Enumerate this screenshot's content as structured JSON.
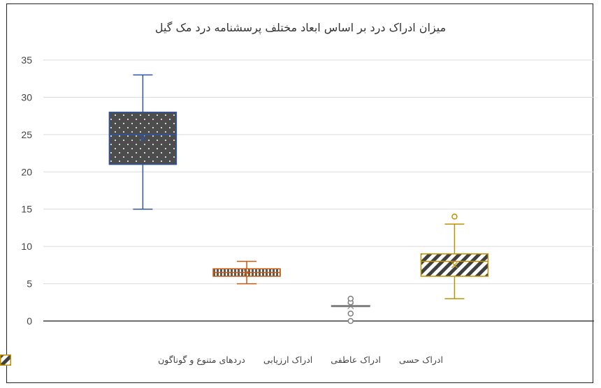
{
  "chart_data": {
    "type": "box",
    "title": "میزان ادراک درد بر اساس ابعاد مختلف پرسشنامه درد مک گیل",
    "xlabel": "",
    "ylabel": "",
    "ylim": [
      0,
      35
    ],
    "yticks": [
      0,
      5,
      10,
      15,
      20,
      25,
      30,
      35
    ],
    "grid": true,
    "legend_position": "bottom",
    "series": [
      {
        "name": "ادراک حسی",
        "color": "#2f55a4",
        "pattern": "dots-on-dark",
        "whisker_low": 15,
        "q1": 21,
        "median": 25,
        "q3": 28,
        "whisker_high": 33,
        "mean": 24.5,
        "outliers": []
      },
      {
        "name": "ادراک عاطفی",
        "color": "#c55a11",
        "pattern": "vertical-stripes",
        "whisker_low": 5,
        "q1": 6,
        "median": 6.5,
        "q3": 7,
        "whisker_high": 8,
        "mean": 6.5,
        "outliers": []
      },
      {
        "name": "ادراک ارزیابی",
        "color": "#7f7f7f",
        "pattern": "light-dots",
        "whisker_low": 2,
        "q1": 2,
        "median": 2,
        "q3": 2,
        "whisker_high": 2,
        "mean": 2,
        "outliers": [
          0,
          1,
          2.5,
          3
        ]
      },
      {
        "name": "دردهای متنوع و گوناگون",
        "color": "#bf9000",
        "pattern": "diagonal-stripes",
        "whisker_low": 3,
        "q1": 6,
        "median": 8,
        "q3": 9,
        "whisker_high": 13,
        "mean": 7.5,
        "outliers": [
          14
        ]
      }
    ]
  }
}
